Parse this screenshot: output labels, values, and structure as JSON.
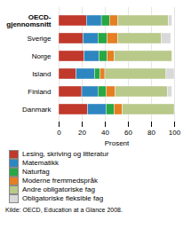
{
  "chart_data": {
    "type": "bar",
    "orientation": "horizontal",
    "stacked": true,
    "categories": [
      "OECD-\ngjennomsnitt",
      "Sverige",
      "Norge",
      "Island",
      "Finland",
      "Danmark"
    ],
    "series": [
      {
        "name": "Lesing, skriving og litteratur",
        "color": "#c0392b",
        "values": [
          24,
          21,
          22,
          15,
          20,
          25
        ]
      },
      {
        "name": "Matematikk",
        "color": "#2e86c1",
        "values": [
          13,
          13,
          13,
          16,
          14,
          16
        ]
      },
      {
        "name": "Naturfag",
        "color": "#28a745",
        "values": [
          7,
          8,
          7,
          5,
          7,
          7
        ]
      },
      {
        "name": "Moderne fremmedspråk",
        "color": "#e67e22",
        "values": [
          7,
          9,
          6,
          4,
          8,
          7
        ]
      },
      {
        "name": "Andre obligatoriske fag",
        "color": "#b8c98a",
        "values": [
          44,
          38,
          50,
          53,
          45,
          45
        ]
      },
      {
        "name": "Obligatoriske fleksible fag",
        "color": "#d9d9d9",
        "values": [
          3,
          8,
          0,
          7,
          4,
          0
        ]
      }
    ],
    "xlabel": "Prosent",
    "xlim": [
      0,
      100
    ],
    "xticks": [
      0,
      20,
      40,
      60,
      80,
      100
    ],
    "grid": true,
    "legend": "bottom",
    "caption": "Kilde: OECD, Education at a Glance 2008."
  }
}
